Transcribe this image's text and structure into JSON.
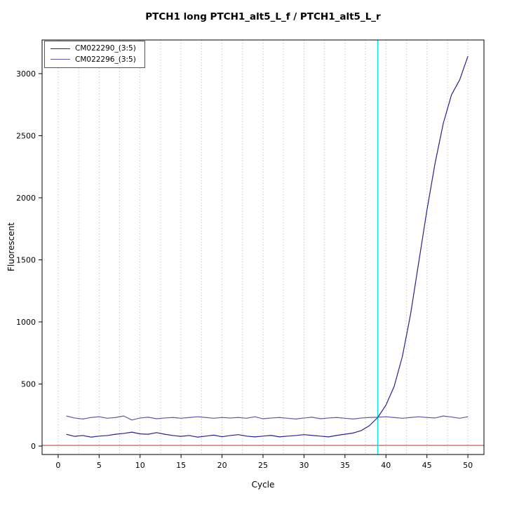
{
  "chart_data": {
    "type": "line",
    "title": "PTCH1 long PTCH1_alt5_L_f / PTCH1_alt5_L_r",
    "xlabel": "Cycle",
    "ylabel": "Fluorescent",
    "xlim": [
      -1.96,
      51.96
    ],
    "ylim": [
      -68,
      3271
    ],
    "xticks": [
      0,
      5,
      10,
      15,
      20,
      25,
      30,
      35,
      40,
      45,
      50
    ],
    "yticks": [
      0,
      500,
      1000,
      1500,
      2000,
      2500,
      3000
    ],
    "grid": {
      "x_minor_step": 2.5,
      "x_min": 0,
      "x_max": 50,
      "color": "#b3b3b3",
      "style": "dotted"
    },
    "threshold_line": {
      "y": 5,
      "color": "#cc4444"
    },
    "ct_line": {
      "x": 39.0,
      "color": "#00e0e8"
    },
    "legend_position": "top-left",
    "series": [
      {
        "name": "CM022290_(3:5)",
        "color": "#23238e",
        "x_start": 1,
        "values": [
          95,
          78,
          85,
          72,
          80,
          85,
          95,
          102,
          112,
          98,
          95,
          108,
          95,
          85,
          78,
          85,
          72,
          80,
          88,
          75,
          85,
          92,
          80,
          74,
          80,
          86,
          74,
          80,
          85,
          92,
          86,
          80,
          74,
          86,
          95,
          105,
          125,
          165,
          230,
          330,
          480,
          720,
          1060,
          1480,
          1900,
          2280,
          2600,
          2830,
          2950,
          3140
        ]
      },
      {
        "name": "CM022296_(3:5)",
        "color": "#5b5ba5",
        "x_start": 1,
        "values": [
          242,
          226,
          218,
          230,
          236,
          224,
          230,
          242,
          210,
          226,
          232,
          220,
          226,
          230,
          224,
          230,
          236,
          230,
          224,
          230,
          226,
          230,
          224,
          236,
          220,
          226,
          230,
          224,
          218,
          226,
          232,
          220,
          226,
          230,
          224,
          218,
          226,
          230,
          232,
          236,
          230,
          224,
          230,
          236,
          230,
          226,
          242,
          234,
          224,
          236
        ]
      }
    ]
  }
}
